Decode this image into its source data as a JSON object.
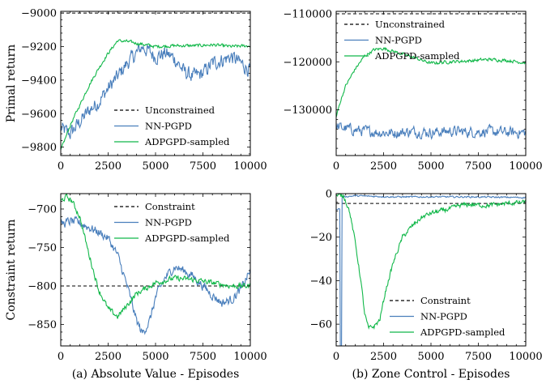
{
  "colors": {
    "nn": "#4a7fbc",
    "adp": "#12b84a",
    "ref": "#000000"
  },
  "chart_data": [
    {
      "type": "line",
      "ylabel": "Primal return",
      "xlim": [
        0,
        10000
      ],
      "ylim": [
        -9850,
        -8990
      ],
      "xticks": [
        0,
        2500,
        5000,
        7500,
        10000
      ],
      "yticks": [
        -9000,
        -9200,
        -9400,
        -9600,
        -9800
      ],
      "legend_position": "lower-right",
      "ref_line": {
        "label": "Unconstrained",
        "y": -9000
      },
      "series": [
        {
          "name": "NN-PGPD",
          "color_key": "nn",
          "points": [
            [
              0,
              -9690
            ],
            [
              500,
              -9720
            ],
            [
              1000,
              -9650
            ],
            [
              1500,
              -9580
            ],
            [
              2000,
              -9530
            ],
            [
              2500,
              -9450
            ],
            [
              3000,
              -9380
            ],
            [
              3500,
              -9300
            ],
            [
              4000,
              -9240
            ],
            [
              4300,
              -9200
            ],
            [
              5000,
              -9260
            ],
            [
              5500,
              -9240
            ],
            [
              6000,
              -9270
            ],
            [
              6500,
              -9350
            ],
            [
              7000,
              -9380
            ],
            [
              7500,
              -9360
            ],
            [
              8000,
              -9300
            ],
            [
              8500,
              -9280
            ],
            [
              9000,
              -9260
            ],
            [
              9500,
              -9300
            ],
            [
              10000,
              -9340
            ]
          ],
          "noise": 38
        },
        {
          "name": "ADPGPD-sampled",
          "color_key": "adp",
          "points": [
            [
              0,
              -9820
            ],
            [
              500,
              -9670
            ],
            [
              1000,
              -9550
            ],
            [
              1500,
              -9430
            ],
            [
              2000,
              -9330
            ],
            [
              2500,
              -9240
            ],
            [
              3000,
              -9165
            ],
            [
              3500,
              -9170
            ],
            [
              4000,
              -9180
            ],
            [
              5000,
              -9200
            ],
            [
              6000,
              -9195
            ],
            [
              7000,
              -9195
            ],
            [
              8000,
              -9190
            ],
            [
              9000,
              -9200
            ],
            [
              10000,
              -9195
            ]
          ],
          "noise": 8
        }
      ]
    },
    {
      "type": "line",
      "ylabel": "",
      "xlim": [
        0,
        10000
      ],
      "ylim": [
        -139500,
        -109500
      ],
      "xticks": [
        0,
        2500,
        5000,
        7500,
        10000
      ],
      "yticks": [
        -110000,
        -120000,
        -130000
      ],
      "legend_position": "upper-left",
      "ref_line": {
        "label": "Unconstrained",
        "y": -110000
      },
      "series": [
        {
          "name": "NN-PGPD",
          "color_key": "nn",
          "points": [
            [
              0,
              -133500
            ],
            [
              1000,
              -134200
            ],
            [
              2000,
              -134600
            ],
            [
              3000,
              -134800
            ],
            [
              4000,
              -134500
            ],
            [
              5000,
              -134700
            ],
            [
              6000,
              -134400
            ],
            [
              7000,
              -134600
            ],
            [
              8000,
              -134500
            ],
            [
              9000,
              -134700
            ],
            [
              10000,
              -134700
            ]
          ],
          "noise": 950
        },
        {
          "name": "ADPGPD-sampled",
          "color_key": "adp",
          "points": [
            [
              0,
              -131500
            ],
            [
              200,
              -128500
            ],
            [
              500,
              -125000
            ],
            [
              1000,
              -121500
            ],
            [
              1500,
              -118800
            ],
            [
              2000,
              -117500
            ],
            [
              2500,
              -117200
            ],
            [
              3000,
              -117800
            ],
            [
              4000,
              -119000
            ],
            [
              5000,
              -120300
            ],
            [
              6000,
              -120000
            ],
            [
              7000,
              -119800
            ],
            [
              8000,
              -119500
            ],
            [
              9000,
              -119700
            ],
            [
              10000,
              -120200
            ]
          ],
          "noise": 280
        }
      ]
    },
    {
      "type": "line",
      "ylabel": "Constraint return",
      "xlabel": "(a) Absolute Value - Episodes",
      "xlim": [
        0,
        10000
      ],
      "ylim": [
        -878,
        -680
      ],
      "xticks": [
        0,
        2500,
        5000,
        7500,
        10000
      ],
      "yticks": [
        -700,
        -750,
        -800,
        -850
      ],
      "legend_position": "upper-right",
      "ref_line": {
        "label": "Constraint",
        "y": -800
      },
      "series": [
        {
          "name": "NN-PGPD",
          "color_key": "nn",
          "points": [
            [
              0,
              -720
            ],
            [
              500,
              -716
            ],
            [
              1000,
              -718
            ],
            [
              1500,
              -724
            ],
            [
              2000,
              -730
            ],
            [
              2500,
              -738
            ],
            [
              3000,
              -760
            ],
            [
              3500,
              -800
            ],
            [
              4000,
              -845
            ],
            [
              4300,
              -862
            ],
            [
              4700,
              -845
            ],
            [
              5000,
              -815
            ],
            [
              5500,
              -790
            ],
            [
              6000,
              -775
            ],
            [
              6500,
              -780
            ],
            [
              7000,
              -788
            ],
            [
              7500,
              -800
            ],
            [
              8000,
              -812
            ],
            [
              8500,
              -822
            ],
            [
              9000,
              -818
            ],
            [
              9500,
              -805
            ],
            [
              10000,
              -780
            ]
          ],
          "noise": 5
        },
        {
          "name": "ADPGPD-sampled",
          "color_key": "adp",
          "points": [
            [
              0,
              -690
            ],
            [
              300,
              -684
            ],
            [
              600,
              -690
            ],
            [
              1000,
              -710
            ],
            [
              1500,
              -760
            ],
            [
              2000,
              -805
            ],
            [
              2500,
              -830
            ],
            [
              3000,
              -840
            ],
            [
              3500,
              -825
            ],
            [
              4000,
              -810
            ],
            [
              5000,
              -796
            ],
            [
              6000,
              -790
            ],
            [
              7000,
              -792
            ],
            [
              8000,
              -796
            ],
            [
              9000,
              -800
            ],
            [
              10000,
              -800
            ]
          ],
          "noise": 3
        }
      ]
    },
    {
      "type": "line",
      "ylabel": "",
      "xlabel": "(b) Zone Control - Episodes",
      "xlim": [
        0,
        10000
      ],
      "ylim": [
        -70,
        0
      ],
      "xticks": [
        0,
        2500,
        5000,
        7500,
        10000
      ],
      "yticks": [
        0,
        -20,
        -40,
        -60
      ],
      "legend_position": "lower-right",
      "ref_line": {
        "label": "Constraint",
        "y": -4.5
      },
      "series": [
        {
          "name": "NN-PGPD",
          "color_key": "nn",
          "points": [
            [
              0,
              -7
            ],
            [
              200,
              -7
            ],
            [
              210,
              -70
            ],
            [
              290,
              -70
            ],
            [
              300,
              -1.5
            ],
            [
              1000,
              -1
            ],
            [
              3000,
              -1.5
            ],
            [
              5000,
              -1.5
            ],
            [
              7000,
              -1.5
            ],
            [
              10000,
              -1.8
            ]
          ],
          "noise": 0.3
        },
        {
          "name": "ADPGPD-sampled",
          "color_key": "adp",
          "points": [
            [
              0,
              -1
            ],
            [
              400,
              -1
            ],
            [
              700,
              -8
            ],
            [
              1000,
              -22
            ],
            [
              1300,
              -40
            ],
            [
              1500,
              -55
            ],
            [
              1700,
              -62
            ],
            [
              2000,
              -61
            ],
            [
              2300,
              -58
            ],
            [
              2600,
              -45
            ],
            [
              3000,
              -32
            ],
            [
              3500,
              -20
            ],
            [
              4000,
              -15
            ],
            [
              4500,
              -11
            ],
            [
              5000,
              -9
            ],
            [
              5500,
              -8
            ],
            [
              6000,
              -7
            ],
            [
              6500,
              -5.5
            ],
            [
              7000,
              -5
            ],
            [
              8000,
              -5.5
            ],
            [
              9000,
              -4.5
            ],
            [
              10000,
              -4
            ]
          ],
          "noise": 0.9
        }
      ]
    }
  ]
}
